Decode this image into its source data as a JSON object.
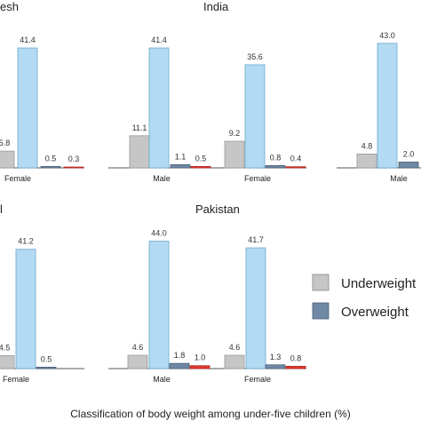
{
  "colors": {
    "underweight": "#c6c6c6",
    "wasting": "#b3daf2",
    "overweight": "#6f88a3",
    "obese": "#e03a30",
    "axis": "#555555"
  },
  "legend": {
    "items": [
      {
        "label": "Underweight",
        "color": "#c6c6c6"
      },
      {
        "label": "Overweight",
        "color": "#6f88a3"
      }
    ]
  },
  "footer": {
    "xlabel": "Classification of body weight among under-five children (%)"
  },
  "chart_data": [
    {
      "type": "bar",
      "title": "esh",
      "ylim": [
        0,
        45
      ],
      "groups": [
        {
          "label": "Female",
          "values": [
            5.8,
            41.4,
            0.5,
            0.3
          ],
          "value_labels": [
            "5.8",
            "41.4",
            "0.5",
            "0.3"
          ]
        }
      ]
    },
    {
      "type": "bar",
      "title": "India",
      "ylim": [
        0,
        45
      ],
      "groups": [
        {
          "label": "Male",
          "values": [
            11.1,
            41.4,
            1.1,
            0.5
          ],
          "value_labels": [
            "11.1",
            "41.4",
            "1.1",
            "0.5"
          ]
        },
        {
          "label": "Female",
          "values": [
            9.2,
            35.6,
            0.8,
            0.4
          ],
          "value_labels": [
            "9.2",
            "35.6",
            "0.8",
            "0.4"
          ]
        }
      ]
    },
    {
      "type": "bar",
      "title": "",
      "ylim": [
        0,
        45
      ],
      "groups": [
        {
          "label": "Male",
          "values": [
            4.8,
            43.0,
            2.0
          ],
          "value_labels": [
            "4.8",
            "43.0",
            "2.0"
          ]
        }
      ]
    },
    {
      "type": "bar",
      "title": "l",
      "ylim": [
        0,
        45
      ],
      "groups": [
        {
          "label": "Female",
          "values": [
            4.5,
            41.2,
            0.5
          ],
          "value_labels": [
            "4.5",
            "41.2",
            "0.5"
          ]
        }
      ]
    },
    {
      "type": "bar",
      "title": "Pakistan",
      "ylim": [
        0,
        45
      ],
      "groups": [
        {
          "label": "Male",
          "values": [
            4.6,
            44.0,
            1.8,
            1.0
          ],
          "value_labels": [
            "4.6",
            "44.0",
            "1.8",
            "1.0"
          ]
        },
        {
          "label": "Female",
          "values": [
            4.6,
            41.7,
            1.3,
            0.8
          ],
          "value_labels": [
            "4.6",
            "41.7",
            "1.3",
            "0.8"
          ]
        }
      ]
    }
  ]
}
